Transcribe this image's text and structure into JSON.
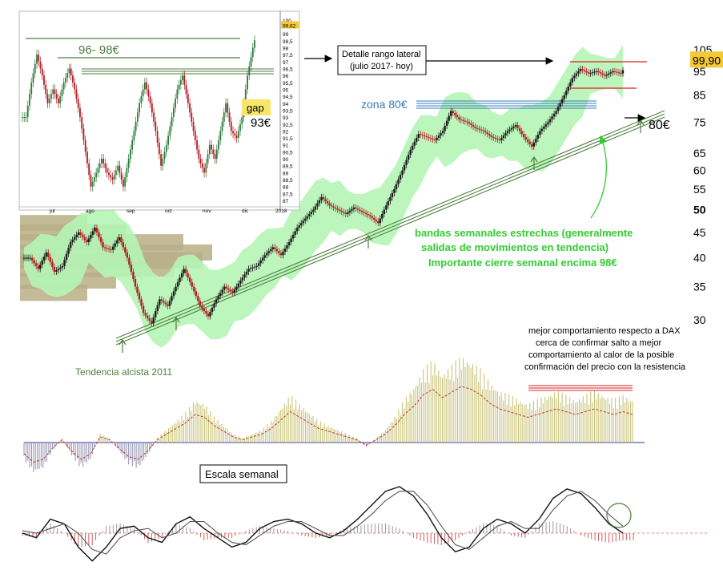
{
  "chart_data": [
    {
      "type": "candlestick",
      "name": "main-weekly",
      "price_axis": {
        "scale": "log",
        "ticks": [
          "105",
          "95",
          "85",
          "75",
          "65",
          "60",
          "55",
          "50",
          "45",
          "40",
          "35",
          "30"
        ],
        "bold_ticks": [
          "50"
        ],
        "current_price_label": "99,90"
      },
      "price_series": [
        {
          "t": 0,
          "c": 40
        },
        {
          "t": 1,
          "c": 38
        },
        {
          "t": 2,
          "c": 41
        },
        {
          "t": 3,
          "c": 37.5
        },
        {
          "t": 4,
          "c": 38.5
        },
        {
          "t": 5,
          "c": 43
        },
        {
          "t": 6,
          "c": 45
        },
        {
          "t": 7,
          "c": 43
        },
        {
          "t": 8,
          "c": 46
        },
        {
          "t": 9,
          "c": 42
        },
        {
          "t": 10,
          "c": 41.5
        },
        {
          "t": 11,
          "c": 44
        },
        {
          "t": 12,
          "c": 40
        },
        {
          "t": 13,
          "c": 35
        },
        {
          "t": 14,
          "c": 31
        },
        {
          "t": 15,
          "c": 29.5
        },
        {
          "t": 16,
          "c": 33
        },
        {
          "t": 17,
          "c": 32
        },
        {
          "t": 18,
          "c": 35
        },
        {
          "t": 19,
          "c": 38
        },
        {
          "t": 20,
          "c": 35
        },
        {
          "t": 21,
          "c": 32
        },
        {
          "t": 22,
          "c": 30.5
        },
        {
          "t": 23,
          "c": 33
        },
        {
          "t": 24,
          "c": 35
        },
        {
          "t": 25,
          "c": 34
        },
        {
          "t": 26,
          "c": 36
        },
        {
          "t": 27,
          "c": 38
        },
        {
          "t": 28,
          "c": 38.5
        },
        {
          "t": 29,
          "c": 40.5
        },
        {
          "t": 30,
          "c": 42
        },
        {
          "t": 31,
          "c": 40.5
        },
        {
          "t": 32,
          "c": 43
        },
        {
          "t": 33,
          "c": 46
        },
        {
          "t": 34,
          "c": 48
        },
        {
          "t": 35,
          "c": 50
        },
        {
          "t": 36,
          "c": 53
        },
        {
          "t": 37,
          "c": 51
        },
        {
          "t": 38,
          "c": 50
        },
        {
          "t": 39,
          "c": 49
        },
        {
          "t": 40,
          "c": 50.5
        },
        {
          "t": 41,
          "c": 49.5
        },
        {
          "t": 42,
          "c": 48.5
        },
        {
          "t": 43,
          "c": 47
        },
        {
          "t": 44,
          "c": 51
        },
        {
          "t": 45,
          "c": 55
        },
        {
          "t": 46,
          "c": 60
        },
        {
          "t": 47,
          "c": 66
        },
        {
          "t": 48,
          "c": 71
        },
        {
          "t": 49,
          "c": 70
        },
        {
          "t": 50,
          "c": 69
        },
        {
          "t": 51,
          "c": 72
        },
        {
          "t": 52,
          "c": 79
        },
        {
          "t": 53,
          "c": 76
        },
        {
          "t": 54,
          "c": 75
        },
        {
          "t": 55,
          "c": 73
        },
        {
          "t": 56,
          "c": 72
        },
        {
          "t": 57,
          "c": 70
        },
        {
          "t": 58,
          "c": 69
        },
        {
          "t": 59,
          "c": 72
        },
        {
          "t": 60,
          "c": 74
        },
        {
          "t": 61,
          "c": 70
        },
        {
          "t": 62,
          "c": 67
        },
        {
          "t": 63,
          "c": 72
        },
        {
          "t": 64,
          "c": 75
        },
        {
          "t": 65,
          "c": 79
        },
        {
          "t": 66,
          "c": 85
        },
        {
          "t": 67,
          "c": 92
        },
        {
          "t": 68,
          "c": 96
        },
        {
          "t": 69,
          "c": 94
        },
        {
          "t": 70,
          "c": 95
        },
        {
          "t": 71,
          "c": 93
        },
        {
          "t": 72,
          "c": 95
        },
        {
          "t": 73,
          "c": 94
        },
        {
          "t": 74,
          "c": 99.9
        }
      ],
      "volume_profile": [
        {
          "p": 47,
          "w": 0.35
        },
        {
          "p": 45,
          "w": 0.55
        },
        {
          "p": 43,
          "w": 0.85
        },
        {
          "p": 41,
          "w": 1.0
        },
        {
          "p": 39.5,
          "w": 0.95
        },
        {
          "p": 38,
          "w": 0.8
        },
        {
          "p": 36,
          "w": 0.5
        },
        {
          "p": 34,
          "w": 0.35
        }
      ],
      "upward_arrows_t": [
        15,
        22,
        51,
        74
      ]
    },
    {
      "type": "candlestick",
      "name": "inset-daily",
      "x_ticks": [
        "jul",
        "ago",
        "sep",
        "oct",
        "nov",
        "dic",
        "2018"
      ],
      "y_ticks": [
        "100",
        "99,62",
        "99",
        "98,5",
        "98",
        "97,5",
        "97",
        "96,5",
        "96",
        "95,5",
        "95",
        "94,5",
        "94",
        "93,5",
        "93",
        "92,5",
        "92",
        "91,5",
        "91",
        "90,5",
        "90",
        "89,5",
        "89",
        "88,5",
        "88",
        "87,5",
        "87"
      ],
      "current_price_label": "99,62",
      "price_series": [
        {
          "t": 0,
          "c": 93
        },
        {
          "t": 1,
          "c": 95.5
        },
        {
          "t": 2,
          "c": 97.5
        },
        {
          "t": 3,
          "c": 96
        },
        {
          "t": 4,
          "c": 94
        },
        {
          "t": 5,
          "c": 95
        },
        {
          "t": 6,
          "c": 94
        },
        {
          "t": 7,
          "c": 95.5
        },
        {
          "t": 8,
          "c": 96.5
        },
        {
          "t": 9,
          "c": 95
        },
        {
          "t": 10,
          "c": 93
        },
        {
          "t": 11,
          "c": 90.5
        },
        {
          "t": 12,
          "c": 88
        },
        {
          "t": 13,
          "c": 89
        },
        {
          "t": 14,
          "c": 90
        },
        {
          "t": 15,
          "c": 89
        },
        {
          "t": 16,
          "c": 88.5
        },
        {
          "t": 17,
          "c": 89.5
        },
        {
          "t": 18,
          "c": 88
        },
        {
          "t": 19,
          "c": 90
        },
        {
          "t": 20,
          "c": 92
        },
        {
          "t": 21,
          "c": 94
        },
        {
          "t": 22,
          "c": 95.5
        },
        {
          "t": 23,
          "c": 94
        },
        {
          "t": 24,
          "c": 92
        },
        {
          "t": 25,
          "c": 89.5
        },
        {
          "t": 26,
          "c": 91
        },
        {
          "t": 27,
          "c": 93
        },
        {
          "t": 28,
          "c": 95
        },
        {
          "t": 29,
          "c": 96
        },
        {
          "t": 30,
          "c": 94
        },
        {
          "t": 31,
          "c": 92
        },
        {
          "t": 32,
          "c": 90
        },
        {
          "t": 33,
          "c": 89
        },
        {
          "t": 34,
          "c": 91
        },
        {
          "t": 35,
          "c": 90
        },
        {
          "t": 36,
          "c": 92
        },
        {
          "t": 37,
          "c": 94
        },
        {
          "t": 38,
          "c": 92
        },
        {
          "t": 39,
          "c": 91.5
        },
        {
          "t": 40,
          "c": 93
        },
        {
          "t": 41,
          "c": 96
        },
        {
          "t": 42,
          "c": 98
        },
        {
          "t": 43,
          "c": 99.62
        }
      ]
    },
    {
      "type": "bar",
      "name": "relative-strength-vs-dax",
      "values": [
        -0.2,
        -0.35,
        -0.3,
        -0.1,
        0.05,
        -0.15,
        -0.3,
        -0.2,
        0.1,
        0.05,
        -0.1,
        -0.25,
        -0.3,
        -0.15,
        0.05,
        0.15,
        0.25,
        0.35,
        0.5,
        0.45,
        0.3,
        0.2,
        0.1,
        0.05,
        0.1,
        0.15,
        0.25,
        0.4,
        0.55,
        0.45,
        0.35,
        0.25,
        0.2,
        0.15,
        0.1,
        0.05,
        -0.05,
        0.05,
        0.15,
        0.3,
        0.5,
        0.65,
        0.85,
        0.95,
        0.8,
        0.9,
        1.0,
        0.95,
        0.85,
        0.7,
        0.6,
        0.55,
        0.5,
        0.45,
        0.5,
        0.55,
        0.6,
        0.55,
        0.5,
        0.55,
        0.6,
        0.55,
        0.5,
        0.55,
        0.5
      ]
    },
    {
      "type": "line",
      "name": "weekly-oscillator",
      "series": [
        {
          "values": [
            0,
            -0.1,
            0.3,
            0.2,
            -0.3,
            -0.6,
            -0.3,
            0.1,
            0.15,
            -0.1,
            -0.2,
            0.2,
            0.35,
            0.1,
            -0.1,
            -0.3,
            -0.2,
            0.1,
            0.25,
            0.3,
            0.2,
            0,
            -0.1,
            0.05,
            0.3,
            0.6,
            0.9,
            1.0,
            0.8,
            0.4,
            -0.1,
            -0.4,
            -0.3,
            0.1,
            0.3,
            0.2,
            0,
            0.3,
            0.75,
            0.95,
            0.85,
            0.55,
            0.2,
            0
          ]
        },
        {
          "values": [
            0.05,
            0,
            0.1,
            0.2,
            0,
            -0.35,
            -0.45,
            -0.1,
            0.05,
            0.1,
            -0.1,
            0,
            0.25,
            0.25,
            0,
            -0.2,
            -0.25,
            -0.05,
            0.15,
            0.25,
            0.25,
            0.1,
            -0.05,
            -0.05,
            0.15,
            0.4,
            0.7,
            0.9,
            0.9,
            0.6,
            0.15,
            -0.25,
            -0.35,
            -0.1,
            0.15,
            0.25,
            0.1,
            0.1,
            0.5,
            0.8,
            0.9,
            0.7,
            0.4,
            0.15
          ]
        }
      ]
    }
  ],
  "annotations": {
    "inset_range": "96- 98€",
    "gap_label": "gap",
    "gap_price": "93€",
    "detail_box_line1": "Detalle rango lateral",
    "detail_box_line2": "(julio 2017- hoy)",
    "zona": "zona 80€",
    "support_80": "80€",
    "bands_line1": "bandas semanales estrechas (generalmente",
    "bands_line2": "salidas de movimientos en tendencia)",
    "bands_line3": "Importante cierre semanal encima 98€",
    "trend": "Tendencia alcista 2011",
    "rs_line1": "mejor comportamiento respecto a DAX",
    "rs_line2": "cerca de confirmar salto a mejor",
    "rs_line3": "comportamiento al calor de la posible",
    "rs_line4": "confirmación del precio con la resistencia",
    "escala": "Escala semanal"
  },
  "colors": {
    "band": "#b5f5b5",
    "bull": "#1a1a1a",
    "bear": "#b01c24",
    "trend": "#4f7f3f",
    "resistance_red": "#d92020",
    "rs_bars": "#c9c47a",
    "annotation_green": "#33cc33",
    "zona_blue": "#3a78c2",
    "profile": "#b8ae86",
    "highlight": "#f7e66a"
  }
}
